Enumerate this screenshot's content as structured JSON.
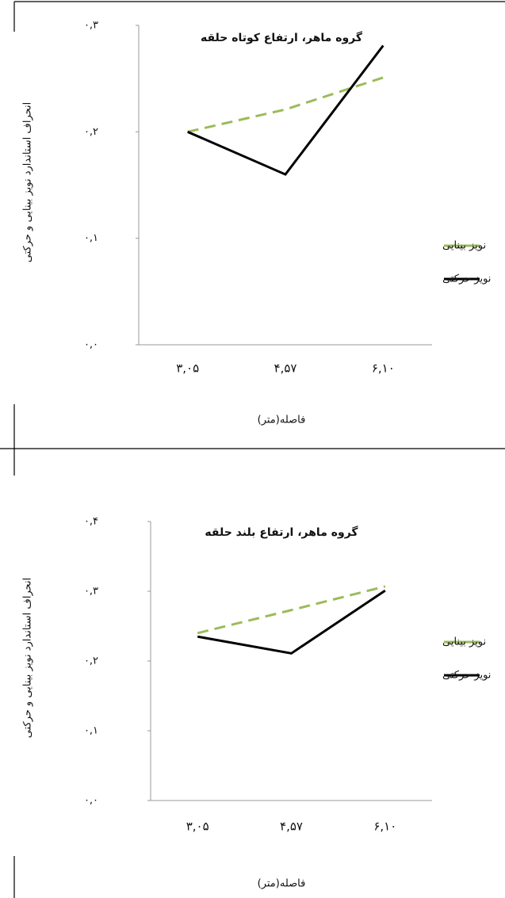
{
  "chart_data": [
    {
      "type": "line",
      "title": "گروه ماهر، ارتفاع کوتاه حلقه",
      "y_label": "انحراف استاندارد نویز بینایی و حرکتی",
      "x_label": "فاصله(متر)",
      "categories": [
        "۳,۰۵",
        "۴,۵۷",
        "۶,۱۰"
      ],
      "ylim": [
        0,
        0.3
      ],
      "yticks": [
        {
          "value": 0,
          "label": "۰,۰"
        },
        {
          "value": 0.1,
          "label": "۰,۱"
        },
        {
          "value": 0.2,
          "label": "۰,۲"
        },
        {
          "value": 0.3,
          "label": "۰,۳"
        }
      ],
      "series": [
        {
          "name": "نویز بینایی",
          "color": "#9bbb59",
          "dashed": true,
          "values": [
            0.2,
            0.221,
            0.251
          ]
        },
        {
          "name": "نویز حرکتی",
          "color": "#000000",
          "dashed": false,
          "values": [
            0.2,
            0.16,
            0.281
          ]
        }
      ]
    },
    {
      "type": "line",
      "title": "گروه ماهر، ارتفاع بلند حلقه",
      "y_label": "انحراف استاندارد نویز بینایی و حرکتی",
      "x_label": "فاصله(متر)",
      "categories": [
        "۳,۰۵",
        "۴,۵۷",
        "۶,۱۰"
      ],
      "ylim": [
        0,
        0.4
      ],
      "yticks": [
        {
          "value": 0,
          "label": "۰,۰"
        },
        {
          "value": 0.1,
          "label": "۰,۱"
        },
        {
          "value": 0.2,
          "label": "۰,۲"
        },
        {
          "value": 0.3,
          "label": "۰,۳"
        },
        {
          "value": 0.4,
          "label": "۰,۴"
        }
      ],
      "series": [
        {
          "name": "نویز بینایی",
          "color": "#9bbb59",
          "dashed": true,
          "values": [
            0.24,
            0.273,
            0.307
          ]
        },
        {
          "name": "نویز حرکتی",
          "color": "#000000",
          "dashed": false,
          "values": [
            0.235,
            0.211,
            0.301
          ]
        }
      ]
    }
  ]
}
